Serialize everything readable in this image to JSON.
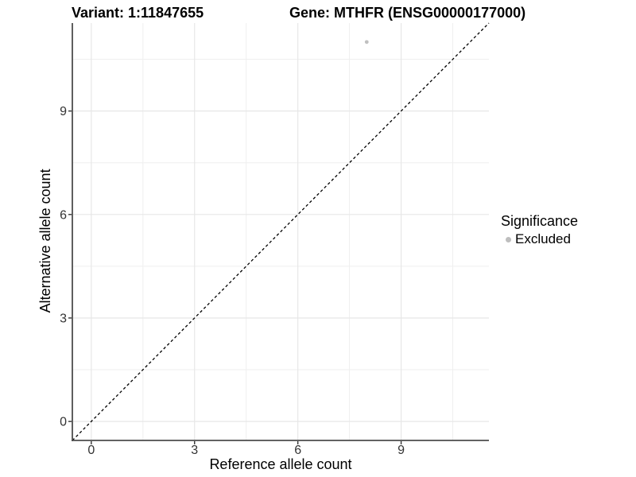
{
  "titles": {
    "variant": "Variant: 1:11847655",
    "gene": "Gene: MTHFR (ENSG00000177000)"
  },
  "chart_data": {
    "type": "scatter",
    "xlabel": "Reference allele count",
    "ylabel": "Alternative allele count",
    "xticks": [
      0,
      3,
      6,
      9
    ],
    "yticks": [
      0,
      3,
      6,
      9
    ],
    "xticks_minor": [
      1.5,
      4.5,
      7.5,
      10.5
    ],
    "yticks_minor": [
      1.5,
      4.5,
      7.5,
      10.5
    ],
    "xlim": [
      -0.55,
      11.55
    ],
    "ylim": [
      -0.55,
      11.55
    ],
    "grid": "on",
    "points": [
      {
        "x": 8,
        "y": 11,
        "series": "Excluded",
        "color": "#c0c0c0"
      }
    ],
    "reference_line": {
      "type": "identity",
      "equation": "y = x",
      "style": "dashed",
      "color": "#000000"
    },
    "legend": {
      "title": "Significance",
      "position": "right",
      "items": [
        {
          "label": "Excluded",
          "color": "#bebebe",
          "marker": "circle"
        }
      ]
    }
  },
  "colors": {
    "background": "#ffffff",
    "grid_major": "#e7e7e7",
    "grid_minor": "#efefef",
    "axis_line": "#4d4d4d",
    "tick": "#333333",
    "tick_label": "#333333",
    "axis_title": "#000000",
    "point_gray": "#c0c0c0"
  }
}
